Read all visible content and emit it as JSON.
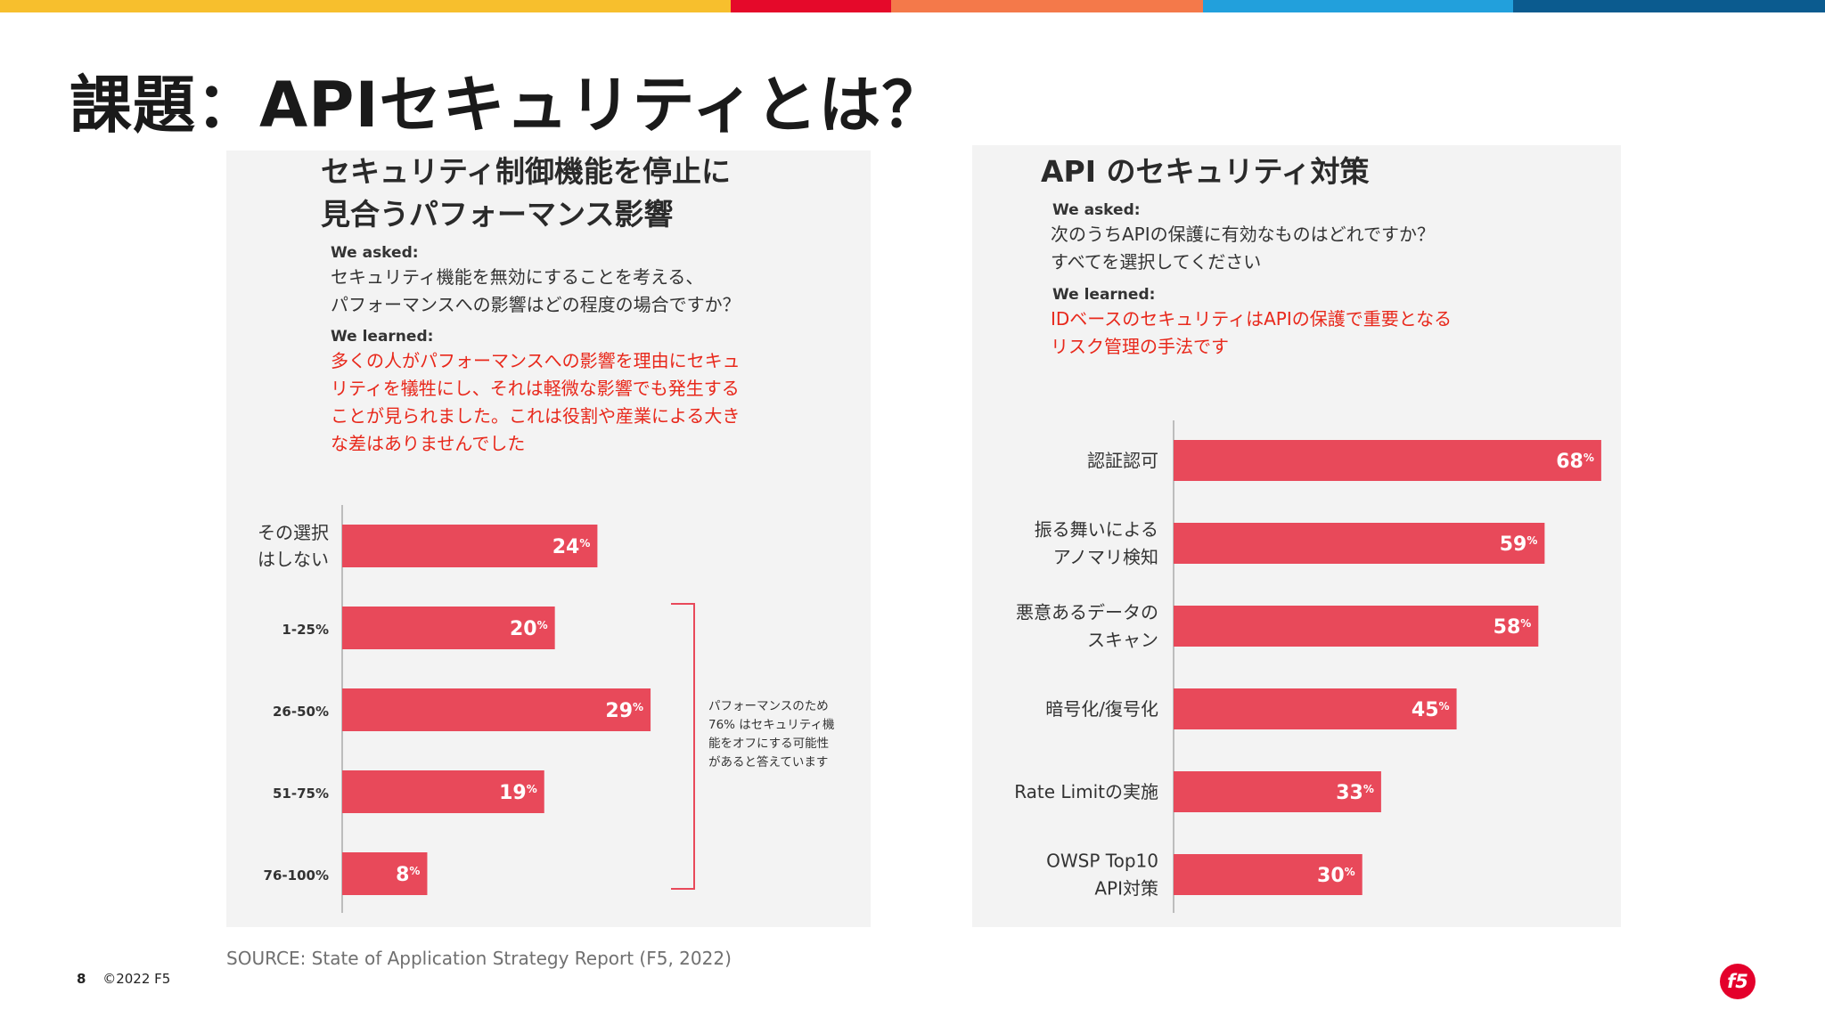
{
  "colors": {
    "topbar": [
      "#f7bf2d",
      "#e5092a",
      "#f4794a",
      "#22a0dc",
      "#0b5b8f"
    ],
    "bar": "#e8495a",
    "learned_text": "#e8281b",
    "panel_bg": "#f3f3f3",
    "logo": "#e4002b"
  },
  "slide": {
    "title": "課題：APIセキュリティとは？",
    "source": "SOURCE: State of Application Strategy Report (F5, 2022)",
    "page_number": "8",
    "copyright": "©2022 F5",
    "logo_icon": "f5-logo-icon",
    "logo_text": "f5"
  },
  "left_panel": {
    "title_lines": [
      "セキュリティ制御機能を停止に",
      "見合うパフォーマンス影響"
    ],
    "asked_label": "We asked:",
    "asked_lines": [
      "セキュリティ機能を無効にすることを考える、",
      "パフォーマンスへの影響はどの程度の場合ですか？"
    ],
    "learned_label": "We learned:",
    "learned_lines": [
      "多くの人がパフォーマンスへの影響を理由にセキュ",
      "リティを犠牲にし、それは軽微な影響でも発生する",
      "ことが見られました。これは役割や産業による大き",
      "な差はありませんでした"
    ],
    "bracket_note_lines": [
      "パフォーマンスのため",
      "76% はセキュリティ機",
      "能をオフにする可能性",
      "があると答えています"
    ]
  },
  "right_panel": {
    "title": "API のセキュリティ対策",
    "asked_label": "We asked:",
    "asked_lines": [
      "次のうちAPIの保護に有効なものはどれですか？",
      "すべてを選択してください"
    ],
    "learned_label": "We learned:",
    "learned_lines": [
      "IDベースのセキュリティはAPIの保護で重要となる",
      "リスク管理の手法です"
    ]
  },
  "chart_data": [
    {
      "type": "bar",
      "orientation": "horizontal",
      "categories": [
        [
          "その選択",
          "はしない"
        ],
        [
          "1-25%"
        ],
        [
          "26-50%"
        ],
        [
          "51-75%"
        ],
        [
          "76-100%"
        ]
      ],
      "values": [
        24,
        20,
        29,
        19,
        8
      ],
      "value_suffix": "%",
      "xlim": [
        0,
        30
      ]
    },
    {
      "type": "bar",
      "orientation": "horizontal",
      "categories": [
        [
          "認証認可"
        ],
        [
          "振る舞いによる",
          "アノマリ検知"
        ],
        [
          "悪意あるデータの",
          "スキャン"
        ],
        [
          "暗号化/復号化"
        ],
        [
          "Rate Limitの実施"
        ],
        [
          "OWSP Top10",
          "API対策"
        ]
      ],
      "values": [
        68,
        59,
        58,
        45,
        33,
        30
      ],
      "value_suffix": "%",
      "xlim": [
        0,
        70
      ]
    }
  ]
}
